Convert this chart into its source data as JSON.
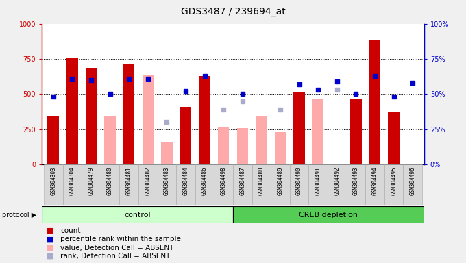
{
  "title": "GDS3487 / 239694_at",
  "samples": [
    "GSM304303",
    "GSM304304",
    "GSM304479",
    "GSM304480",
    "GSM304481",
    "GSM304482",
    "GSM304483",
    "GSM304484",
    "GSM304486",
    "GSM304498",
    "GSM304487",
    "GSM304488",
    "GSM304489",
    "GSM304490",
    "GSM304491",
    "GSM304492",
    "GSM304493",
    "GSM304494",
    "GSM304495",
    "GSM304496"
  ],
  "control_count": 10,
  "red_bars": [
    340,
    760,
    680,
    null,
    710,
    null,
    null,
    410,
    630,
    null,
    null,
    null,
    null,
    510,
    null,
    null,
    460,
    880,
    370,
    null
  ],
  "pink_bars": [
    null,
    null,
    null,
    340,
    null,
    640,
    160,
    null,
    null,
    270,
    260,
    340,
    230,
    null,
    460,
    null,
    null,
    null,
    null,
    null
  ],
  "blue_squares": [
    480,
    610,
    600,
    500,
    610,
    610,
    null,
    520,
    630,
    null,
    500,
    null,
    null,
    570,
    530,
    590,
    500,
    630,
    480,
    580
  ],
  "lavender_squares": [
    null,
    null,
    null,
    null,
    null,
    null,
    300,
    null,
    null,
    390,
    450,
    null,
    390,
    null,
    null,
    530,
    null,
    null,
    null,
    null
  ],
  "plot_bg": "#ffffff",
  "fig_bg": "#f0f0f0",
  "red_color": "#cc0000",
  "pink_color": "#ffaaaa",
  "blue_color": "#0000cc",
  "lavender_color": "#aaaacc",
  "control_bg": "#ccffcc",
  "creb_bg": "#55cc55",
  "cell_bg": "#d8d8d8",
  "ylim_left": [
    0,
    1000
  ],
  "ylim_right": [
    0,
    100
  ],
  "yticks_left": [
    0,
    250,
    500,
    750,
    1000
  ],
  "yticks_right": [
    0,
    25,
    50,
    75,
    100
  ],
  "ytick_labels_left": [
    "0",
    "250",
    "500",
    "750",
    "1000"
  ],
  "ytick_labels_right": [
    "0%",
    "25%",
    "50%",
    "75%",
    "100%"
  ]
}
